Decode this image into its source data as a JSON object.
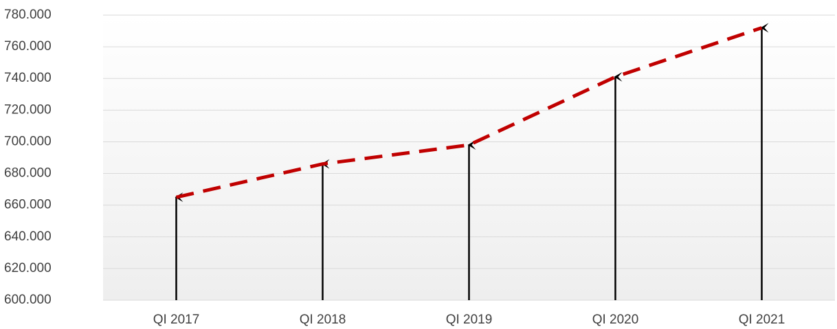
{
  "chart_data": {
    "type": "line",
    "categories": [
      "QI 2017",
      "QI 2018",
      "QI 2019",
      "QI 2020",
      "QI 2021"
    ],
    "values": [
      665000,
      686000,
      698000,
      741000,
      772000
    ],
    "color": "#c00000",
    "ylim": [
      600000,
      780000
    ],
    "yticks": [
      {
        "value": 600000,
        "label": "600.000"
      },
      {
        "value": 620000,
        "label": "620.000"
      },
      {
        "value": 640000,
        "label": "640.000"
      },
      {
        "value": 660000,
        "label": "660.000"
      },
      {
        "value": 680000,
        "label": "680.000"
      },
      {
        "value": 700000,
        "label": "700.000"
      },
      {
        "value": 720000,
        "label": "720.000"
      },
      {
        "value": 740000,
        "label": "740.000"
      },
      {
        "value": 760000,
        "label": "760.000"
      },
      {
        "value": 780000,
        "label": "780.000"
      }
    ],
    "grid": true
  }
}
